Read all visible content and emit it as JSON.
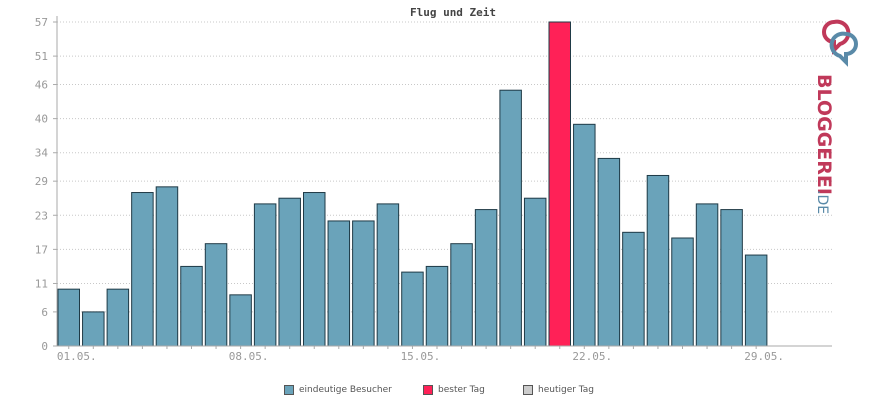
{
  "chart_data": {
    "type": "bar",
    "title": "Flug und Zeit",
    "x_tick_labels": [
      "01.05.",
      "08.05.",
      "15.05.",
      "22.05.",
      "29.05."
    ],
    "x_tick_days": [
      1,
      8,
      15,
      22,
      29
    ],
    "days": [
      1,
      2,
      3,
      4,
      5,
      6,
      7,
      8,
      9,
      10,
      11,
      12,
      13,
      14,
      15,
      16,
      17,
      18,
      19,
      20,
      21,
      22,
      23,
      24,
      25,
      26,
      27,
      28,
      29
    ],
    "values": [
      10,
      6,
      10,
      27,
      28,
      14,
      18,
      9,
      25,
      26,
      27,
      22,
      22,
      25,
      13,
      14,
      18,
      24,
      45,
      26,
      57,
      39,
      33,
      20,
      30,
      19,
      25,
      24,
      16
    ],
    "best_day": 21,
    "y_ticks": [
      0,
      6,
      11,
      17,
      23,
      29,
      34,
      40,
      46,
      51,
      57
    ],
    "ylim": [
      0,
      57
    ],
    "grid": true,
    "colors": {
      "visitors": "#6aa3ba",
      "best": "#ff2157",
      "today": "#cccccc",
      "bar_border": "#1f3a46",
      "grid": "#c8c8c8",
      "axis": "#aaaaaa"
    },
    "legend": [
      {
        "label": "eindeutige Besucher",
        "color": "#6aa3ba"
      },
      {
        "label": "bester Tag",
        "color": "#ff2157"
      },
      {
        "label": "heutiger Tag",
        "color": "#cccccc"
      }
    ],
    "legend_position": "bottom"
  },
  "logo": {
    "text_main": "BLOGGEREI",
    "text_suffix": ".DE",
    "colors": {
      "main": "#c0395a",
      "suffix": "#5a8aa8"
    },
    "icon": "bloggerei-logo-icon"
  }
}
